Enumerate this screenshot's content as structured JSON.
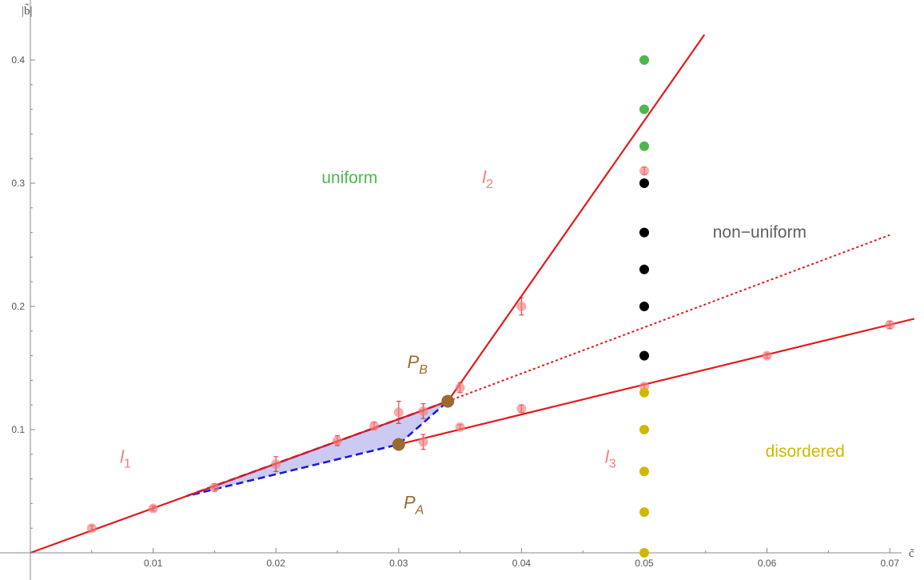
{
  "chart_data": {
    "type": "scatter",
    "xlabel": "c̃",
    "ylabel": "|b̃|",
    "xlim": [
      0,
      0.072
    ],
    "ylim": [
      0,
      0.42
    ],
    "x_ticks": [
      "0.01",
      "0.02",
      "0.03",
      "0.04",
      "0.05",
      "0.06",
      "0.07"
    ],
    "y_ticks": [
      "0.1",
      "0.2",
      "0.3",
      "0.4"
    ],
    "grid": false,
    "colors": {
      "axis": "#888888",
      "fit_line": "#e31a1c",
      "measured": "#f47c7c",
      "uniform": "#4cb84c",
      "non_uniform": "#000000",
      "disordered": "#d1b800",
      "special_point": "#9a6a2f",
      "region_fill": "#b8b8f0",
      "region_edge": "#1a1ad6",
      "line_label": "#f47c7c",
      "nonuniform_text": "#606060"
    },
    "region_labels": [
      {
        "text": "uniform",
        "color": "#4cb84c",
        "x": 0.026,
        "y": 0.3
      },
      {
        "text": "non−uniform",
        "color": "#606060",
        "x": 0.0594,
        "y": 0.256
      },
      {
        "text": "disordered",
        "color": "#d1b800",
        "x": 0.0631,
        "y": 0.078
      }
    ],
    "line_labels": [
      {
        "text": "l",
        "sub": "1",
        "x": 0.0073,
        "y": 0.073
      },
      {
        "text": "l",
        "sub": "2",
        "x": 0.0368,
        "y": 0.3
      },
      {
        "text": "l",
        "sub": "3",
        "x": 0.0468,
        "y": 0.073
      }
    ],
    "point_labels": [
      {
        "text": "P",
        "sub": "B",
        "x": 0.0307,
        "y": 0.15
      },
      {
        "text": "P",
        "sub": "A",
        "x": 0.0304,
        "y": 0.036
      }
    ],
    "lines": [
      {
        "name": "l1",
        "style": "solid",
        "points": [
          [
            0,
            0
          ],
          [
            0.034,
            0.123
          ]
        ]
      },
      {
        "name": "l2",
        "style": "solid",
        "points": [
          [
            0.034,
            0.123
          ],
          [
            0.0549,
            0.4205
          ]
        ]
      },
      {
        "name": "l3",
        "style": "solid",
        "points": [
          [
            0.03,
            0.088
          ],
          [
            0.072,
            0.19
          ]
        ]
      },
      {
        "name": "boundary",
        "style": "dotted",
        "points": [
          [
            0.034,
            0.123
          ],
          [
            0.07,
            0.258
          ]
        ]
      }
    ],
    "shaded_region": [
      [
        0.0127,
        0.046
      ],
      [
        0.034,
        0.123
      ],
      [
        0.03,
        0.088
      ]
    ],
    "special_points": [
      {
        "name": "P_B",
        "x": 0.034,
        "y": 0.123
      },
      {
        "name": "P_A",
        "x": 0.03,
        "y": 0.088
      }
    ],
    "series": [
      {
        "name": "",
        "role": "measured",
        "points": [
          {
            "x": 0.005,
            "y": 0.02,
            "err": 0.002
          },
          {
            "x": 0.01,
            "y": 0.036,
            "err": 0.002
          },
          {
            "x": 0.015,
            "y": 0.053,
            "err": 0.003
          },
          {
            "x": 0.02,
            "y": 0.072,
            "err": 0.006
          },
          {
            "x": 0.025,
            "y": 0.091,
            "err": 0.004
          },
          {
            "x": 0.028,
            "y": 0.103,
            "err": 0.003
          },
          {
            "x": 0.03,
            "y": 0.114,
            "err": 0.009
          },
          {
            "x": 0.032,
            "y": 0.115,
            "err": 0.006
          },
          {
            "x": 0.032,
            "y": 0.09,
            "err": 0.006
          },
          {
            "x": 0.035,
            "y": 0.134,
            "err": 0.004
          },
          {
            "x": 0.035,
            "y": 0.102,
            "err": 0.002
          },
          {
            "x": 0.04,
            "y": 0.2,
            "err": 0.007
          },
          {
            "x": 0.04,
            "y": 0.117,
            "err": 0.003
          },
          {
            "x": 0.05,
            "y": 0.31,
            "err": 0.003
          },
          {
            "x": 0.05,
            "y": 0.135,
            "err": 0.002
          },
          {
            "x": 0.06,
            "y": 0.16,
            "err": 0.002
          },
          {
            "x": 0.07,
            "y": 0.185,
            "err": 0.003
          }
        ]
      },
      {
        "name": "",
        "role": "uniform",
        "points": [
          {
            "x": 0.05,
            "y": 0.4
          },
          {
            "x": 0.05,
            "y": 0.36
          },
          {
            "x": 0.05,
            "y": 0.33
          }
        ]
      },
      {
        "name": "",
        "role": "non_uniform",
        "points": [
          {
            "x": 0.05,
            "y": 0.3
          },
          {
            "x": 0.05,
            "y": 0.26
          },
          {
            "x": 0.05,
            "y": 0.23
          },
          {
            "x": 0.05,
            "y": 0.2
          },
          {
            "x": 0.05,
            "y": 0.16
          }
        ]
      },
      {
        "name": "",
        "role": "disordered",
        "points": [
          {
            "x": 0.05,
            "y": 0.13
          },
          {
            "x": 0.05,
            "y": 0.1
          },
          {
            "x": 0.05,
            "y": 0.066
          },
          {
            "x": 0.05,
            "y": 0.033
          },
          {
            "x": 0.05,
            "y": 0.0
          }
        ]
      }
    ]
  }
}
